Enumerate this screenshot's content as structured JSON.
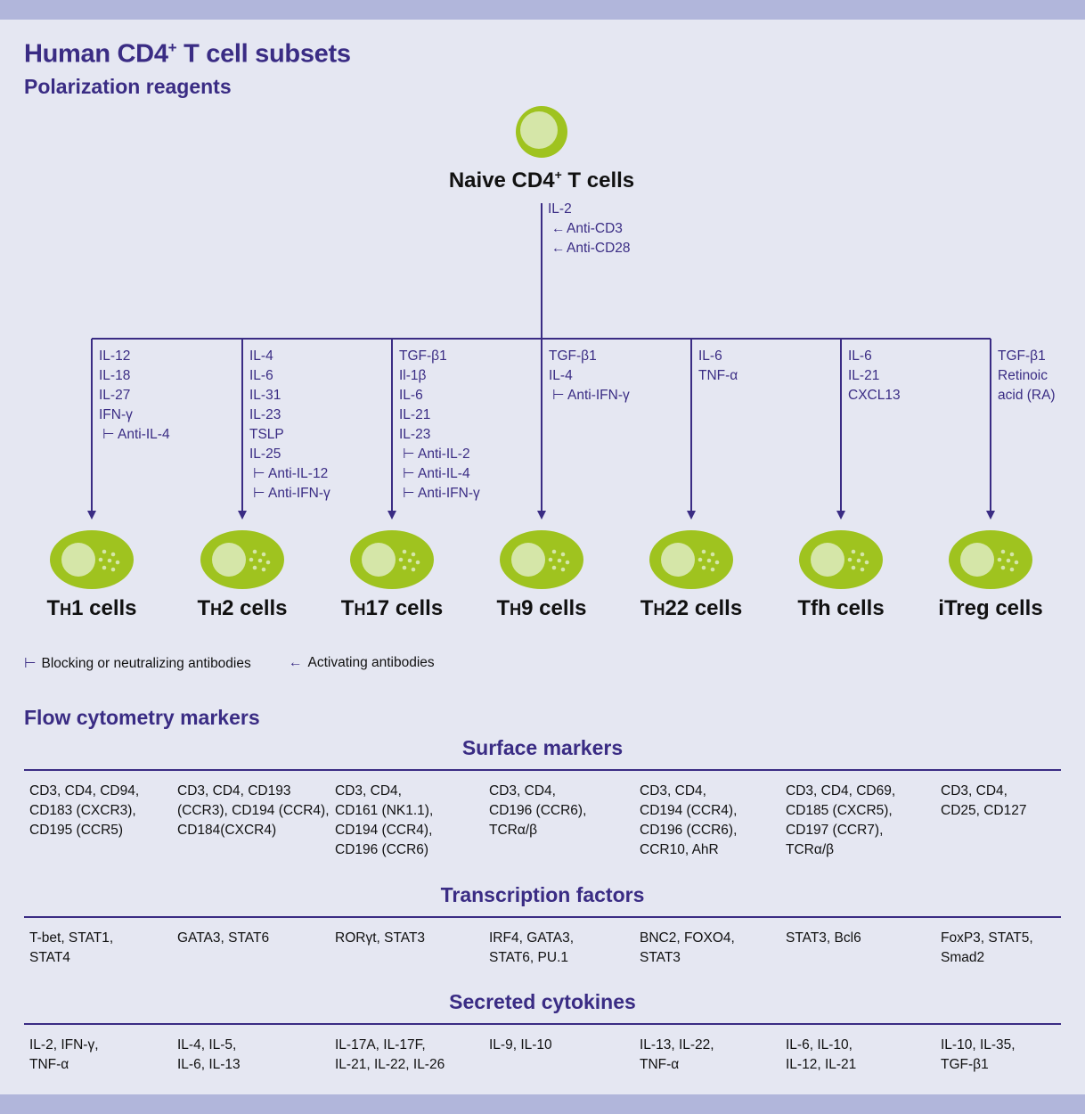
{
  "header": {
    "title": "Human CD4",
    "title_sup": "+",
    "title_rest": " T cell subsets",
    "subtitle": "Polarization reagents"
  },
  "naive": {
    "label": "Naive CD4",
    "label_sup": "+",
    "label_rest": " T cells",
    "reagents": [
      {
        "sym": "",
        "text": "IL-2"
      },
      {
        "sym": "←",
        "text": "Anti-CD3"
      },
      {
        "sym": "←",
        "text": "Anti-CD28"
      }
    ]
  },
  "subsets": [
    {
      "name_pre": "T",
      "name_sub": "H",
      "name_post": "1 cells",
      "reagents": [
        {
          "sym": "",
          "text": "IL-12"
        },
        {
          "sym": "",
          "text": "IL-18"
        },
        {
          "sym": "",
          "text": "IL-27"
        },
        {
          "sym": "",
          "text": "IFN-γ"
        },
        {
          "sym": "⊢",
          "text": "Anti-IL-4"
        }
      ]
    },
    {
      "name_pre": "T",
      "name_sub": "H",
      "name_post": "2 cells",
      "reagents": [
        {
          "sym": "",
          "text": "IL-4"
        },
        {
          "sym": "",
          "text": "IL-6"
        },
        {
          "sym": "",
          "text": "IL-31"
        },
        {
          "sym": "",
          "text": "IL-23"
        },
        {
          "sym": "",
          "text": "TSLP"
        },
        {
          "sym": "",
          "text": "IL-25"
        },
        {
          "sym": "⊢",
          "text": "Anti-IL-12"
        },
        {
          "sym": "⊢",
          "text": "Anti-IFN-γ"
        }
      ]
    },
    {
      "name_pre": "T",
      "name_sub": "H",
      "name_post": "17 cells",
      "reagents": [
        {
          "sym": "",
          "text": "TGF-β1"
        },
        {
          "sym": "",
          "text": "Il-1β"
        },
        {
          "sym": "",
          "text": "IL-6"
        },
        {
          "sym": "",
          "text": "IL-21"
        },
        {
          "sym": "",
          "text": "IL-23"
        },
        {
          "sym": "⊢",
          "text": "Anti-IL-2"
        },
        {
          "sym": "⊢",
          "text": "Anti-IL-4"
        },
        {
          "sym": "⊢",
          "text": "Anti-IFN-γ"
        }
      ]
    },
    {
      "name_pre": "T",
      "name_sub": "H",
      "name_post": "9 cells",
      "reagents": [
        {
          "sym": "",
          "text": "TGF-β1"
        },
        {
          "sym": "",
          "text": "IL-4"
        },
        {
          "sym": "⊢",
          "text": "Anti-IFN-γ"
        }
      ]
    },
    {
      "name_pre": "T",
      "name_sub": "H",
      "name_post": "22 cells",
      "reagents": [
        {
          "sym": "",
          "text": "IL-6"
        },
        {
          "sym": "",
          "text": "TNF-α"
        }
      ]
    },
    {
      "name_pre": "Tfh cells",
      "name_sub": "",
      "name_post": "",
      "reagents": [
        {
          "sym": "",
          "text": "IL-6"
        },
        {
          "sym": "",
          "text": "IL-21"
        },
        {
          "sym": "",
          "text": "CXCL13"
        }
      ]
    },
    {
      "name_pre": "iTreg cells",
      "name_sub": "",
      "name_post": "",
      "reagents": [
        {
          "sym": "",
          "text": "TGF-β1"
        },
        {
          "sym": "",
          "text": "Retinoic"
        },
        {
          "sym": "",
          "text": "acid (RA)"
        }
      ]
    }
  ],
  "legend": {
    "blocking_sym": "⊢",
    "blocking": "Blocking or neutralizing antibodies",
    "activating_sym": "←",
    "activating": "Activating antibodies"
  },
  "flow": {
    "title": "Flow cytometry markers",
    "surface_title": "Surface markers",
    "surface": [
      [
        "CD3, CD4, CD94,",
        "CD183 (CXCR3),",
        "CD195 (CCR5)"
      ],
      [
        "CD3, CD4, CD193",
        "(CCR3), CD194 (CCR4),",
        "CD184(CXCR4)"
      ],
      [
        "CD3, CD4,",
        "CD161 (NK1.1),",
        "CD194 (CCR4),",
        "CD196 (CCR6)"
      ],
      [
        "CD3, CD4,",
        "CD196 (CCR6),",
        "TCRα/β"
      ],
      [
        "CD3, CD4,",
        "CD194 (CCR4),",
        "CD196 (CCR6),",
        "CCR10, AhR"
      ],
      [
        "CD3, CD4, CD69,",
        "CD185 (CXCR5),",
        "CD197 (CCR7),",
        "TCRα/β"
      ],
      [
        "CD3, CD4,",
        "CD25, CD127"
      ]
    ],
    "tf_title": "Transcription factors",
    "tf": [
      [
        "T-bet, STAT1,",
        "STAT4"
      ],
      [
        "GATA3, STAT6"
      ],
      [
        "RORγt, STAT3"
      ],
      [
        "IRF4, GATA3,",
        "STAT6, PU.1"
      ],
      [
        "BNC2, FOXO4,",
        "STAT3"
      ],
      [
        "STAT3, Bcl6"
      ],
      [
        "FoxP3, STAT5,",
        "Smad2"
      ]
    ],
    "cyto_title": "Secreted cytokines",
    "cyto": [
      [
        "IL-2, IFN-γ,",
        "TNF-α"
      ],
      [
        "IL-4, IL-5,",
        "IL-6, IL-13"
      ],
      [
        "IL-17A, IL-17F,",
        "IL-21, IL-22, IL-26"
      ],
      [
        "IL-9, IL-10"
      ],
      [
        "IL-13, IL-22,",
        "TNF-α"
      ],
      [
        "IL-6, IL-10,",
        "IL-12, IL-21"
      ],
      [
        "IL-10, IL-35,",
        "TGF-β1"
      ]
    ]
  },
  "colors": {
    "accent": "#3a2c84",
    "cell_outer": "#9fc31f",
    "cell_inner": "#d5e6a8",
    "background": "#e5e7f2",
    "band": "#b1b6db"
  }
}
